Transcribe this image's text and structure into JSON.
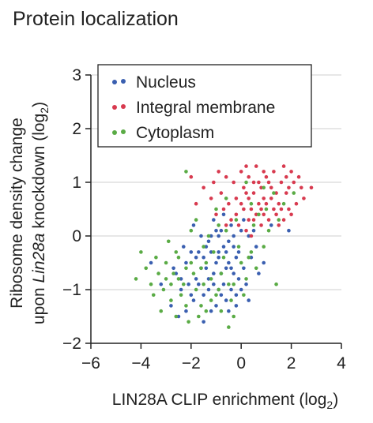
{
  "chart_data": {
    "type": "scatter",
    "title": "Protein localization",
    "xlabel": "LIN28A CLIP enrichment (log2)",
    "ylabel_line1": "Ribosome density change",
    "ylabel_line2_prefix": "upon ",
    "ylabel_line2_italic": "Lin28a",
    "ylabel_line2_suffix": " knockdown (log2)",
    "xlim": [
      -6,
      4
    ],
    "ylim": [
      -2,
      3
    ],
    "xticks": [
      "−6",
      "−4",
      "−2",
      "0",
      "2",
      "4"
    ],
    "yticks": [
      "−2",
      "−1",
      "0",
      "1",
      "2",
      "3"
    ],
    "grid": "horizontal",
    "legend_position": "top-left",
    "series": [
      {
        "name": "Nucleus",
        "color": "#3a5fb0"
      },
      {
        "name": "Integral membrane",
        "color": "#d83a4f"
      },
      {
        "name": "Cytoplasm",
        "color": "#5aab45"
      }
    ],
    "series_points": [
      [
        [
          -1.3,
          -0.1
        ],
        [
          -0.9,
          -0.3
        ],
        [
          -0.5,
          -0.5
        ],
        [
          -0.1,
          -0.8
        ],
        [
          -0.6,
          -1.2
        ],
        [
          -1.1,
          -0.7
        ],
        [
          -1.8,
          -0.4
        ],
        [
          -2.1,
          -0.9
        ],
        [
          -0.3,
          -0.2
        ],
        [
          0.1,
          -0.6
        ],
        [
          -0.8,
          0.1
        ],
        [
          -1.5,
          -1.1
        ],
        [
          -2.4,
          -1.0
        ],
        [
          -0.2,
          -1.3
        ],
        [
          0.3,
          0.0
        ],
        [
          -1.0,
          -0.5
        ],
        [
          -0.7,
          -0.9
        ],
        [
          -1.6,
          -0.6
        ],
        [
          -2.0,
          -0.3
        ],
        [
          -0.4,
          0.2
        ],
        [
          0.4,
          -0.4
        ],
        [
          -1.2,
          -1.4
        ],
        [
          -2.6,
          -0.7
        ],
        [
          -0.9,
          0.0
        ],
        [
          0.0,
          -1.0
        ],
        [
          -1.4,
          -0.2
        ],
        [
          -0.6,
          -0.6
        ],
        [
          -1.9,
          -1.2
        ],
        [
          -0.2,
          -0.4
        ],
        [
          -1.1,
          0.3
        ],
        [
          0.6,
          -0.2
        ],
        [
          -2.2,
          -0.5
        ],
        [
          -0.8,
          -1.1
        ],
        [
          -1.3,
          -0.8
        ],
        [
          -0.5,
          -0.1
        ],
        [
          0.2,
          -0.9
        ],
        [
          -1.7,
          -0.9
        ],
        [
          -2.8,
          -1.3
        ],
        [
          -0.3,
          -0.7
        ],
        [
          -1.0,
          -1.3
        ],
        [
          -1.5,
          -1.6
        ],
        [
          0.5,
          0.1
        ],
        [
          -0.7,
          0.4
        ],
        [
          -1.2,
          -0.3
        ],
        [
          -2.3,
          -0.2
        ],
        [
          -0.1,
          -0.3
        ],
        [
          -1.8,
          -0.8
        ],
        [
          -0.4,
          -1.0
        ],
        [
          0.9,
          -0.5
        ],
        [
          -3.2,
          -0.9
        ],
        [
          -2.5,
          -1.5
        ],
        [
          -0.9,
          -0.4
        ],
        [
          -1.6,
          0.0
        ],
        [
          0.1,
          0.3
        ],
        [
          -0.6,
          -0.3
        ],
        [
          -1.4,
          -0.6
        ],
        [
          -2.0,
          -1.1
        ],
        [
          -0.2,
          -1.1
        ],
        [
          -1.0,
          0.1
        ],
        [
          -3.6,
          -0.5
        ],
        [
          1.2,
          0.2
        ],
        [
          -0.5,
          -1.4
        ],
        [
          -1.9,
          0.2
        ],
        [
          -0.8,
          -0.7
        ],
        [
          0.3,
          -1.2
        ],
        [
          -1.3,
          -1.0
        ],
        [
          -2.7,
          -0.6
        ],
        [
          -0.3,
          0.0
        ],
        [
          -1.1,
          -0.9
        ],
        [
          -1.7,
          -0.3
        ],
        [
          1.9,
          0.1
        ],
        [
          -2.2,
          -1.4
        ],
        [
          -0.7,
          -0.2
        ],
        [
          0.0,
          0.1
        ],
        [
          -1.5,
          -0.4
        ],
        [
          -0.9,
          -1.0
        ],
        [
          -2.4,
          -0.8
        ],
        [
          -0.4,
          -0.6
        ],
        [
          -1.2,
          0.0
        ],
        [
          0.7,
          -0.7
        ]
      ],
      [
        [
          -0.2,
          0.4
        ],
        [
          0.3,
          0.7
        ],
        [
          0.8,
          0.5
        ],
        [
          1.2,
          0.9
        ],
        [
          0.5,
          0.3
        ],
        [
          1.5,
          0.6
        ],
        [
          0.1,
          0.9
        ],
        [
          -0.5,
          0.6
        ],
        [
          1.0,
          1.1
        ],
        [
          1.8,
          0.8
        ],
        [
          0.6,
          1.3
        ],
        [
          -0.8,
          0.8
        ],
        [
          0.2,
          0.1
        ],
        [
          1.4,
          0.4
        ],
        [
          2.0,
          1.2
        ],
        [
          0.9,
          0.7
        ],
        [
          -0.3,
          1.0
        ],
        [
          1.6,
          1.0
        ],
        [
          0.4,
          0.5
        ],
        [
          -1.0,
          0.4
        ],
        [
          1.1,
          0.3
        ],
        [
          2.4,
          0.9
        ],
        [
          0.7,
          1.0
        ],
        [
          -0.6,
          1.1
        ],
        [
          1.3,
          1.2
        ],
        [
          0.0,
          0.6
        ],
        [
          1.9,
          0.5
        ],
        [
          0.5,
          0.8
        ],
        [
          -1.2,
          0.7
        ],
        [
          1.7,
          1.3
        ],
        [
          0.8,
          0.2
        ],
        [
          -0.1,
          0.2
        ],
        [
          2.2,
          0.6
        ],
        [
          1.0,
          0.6
        ],
        [
          0.3,
          1.1
        ],
        [
          -0.9,
          1.2
        ],
        [
          1.5,
          0.2
        ],
        [
          0.6,
          0.4
        ],
        [
          2.8,
          0.9
        ],
        [
          -1.5,
          0.9
        ],
        [
          1.2,
          0.7
        ],
        [
          0.2,
          0.8
        ],
        [
          -0.4,
          0.3
        ],
        [
          1.8,
          1.1
        ],
        [
          0.9,
          1.2
        ],
        [
          2.1,
          1.0
        ],
        [
          -0.7,
          0.5
        ],
        [
          0.4,
          0.0
        ],
        [
          1.4,
          0.8
        ],
        [
          0.0,
          1.2
        ],
        [
          2.5,
          0.7
        ],
        [
          -1.8,
          0.6
        ],
        [
          1.1,
          1.0
        ],
        [
          0.7,
          0.6
        ],
        [
          -0.2,
          0.7
        ],
        [
          1.6,
          0.5
        ],
        [
          0.3,
          0.3
        ],
        [
          2.3,
          1.1
        ],
        [
          -1.1,
          1.0
        ],
        [
          0.8,
          0.9
        ],
        [
          1.3,
          0.5
        ],
        [
          0.5,
          1.0
        ],
        [
          -0.6,
          0.2
        ],
        [
          1.9,
          0.9
        ],
        [
          0.1,
          0.5
        ],
        [
          -2.0,
          1.1
        ],
        [
          1.7,
          0.3
        ],
        [
          0.9,
          0.4
        ],
        [
          2.0,
          0.4
        ],
        [
          0.2,
          1.3
        ]
      ],
      [
        [
          -2.6,
          -0.3
        ],
        [
          -3.0,
          -0.8
        ],
        [
          -2.2,
          -0.6
        ],
        [
          -1.8,
          -1.0
        ],
        [
          -3.4,
          -0.4
        ],
        [
          -2.8,
          -1.2
        ],
        [
          -1.5,
          -0.2
        ],
        [
          -2.0,
          0.1
        ],
        [
          -3.6,
          -0.9
        ],
        [
          -2.4,
          -1.1
        ],
        [
          -1.2,
          -0.8
        ],
        [
          -0.8,
          -1.4
        ],
        [
          -2.9,
          -0.1
        ],
        [
          -3.2,
          -1.4
        ],
        [
          -1.6,
          -1.3
        ],
        [
          -0.5,
          -0.9
        ],
        [
          -2.1,
          -1.6
        ],
        [
          -3.8,
          -0.6
        ],
        [
          -4.2,
          -0.8
        ],
        [
          -1.0,
          -1.1
        ],
        [
          -0.3,
          -1.5
        ],
        [
          0.2,
          -0.8
        ],
        [
          -2.5,
          -0.4
        ],
        [
          -1.4,
          -0.5
        ],
        [
          -1.9,
          -0.7
        ],
        [
          -0.7,
          -0.4
        ],
        [
          0.4,
          -0.3
        ],
        [
          -3.1,
          -1.0
        ],
        [
          -2.3,
          -0.9
        ],
        [
          -0.9,
          0.2
        ],
        [
          -1.3,
          0.0
        ],
        [
          -0.1,
          -0.2
        ],
        [
          0.6,
          -0.6
        ],
        [
          -1.7,
          -1.5
        ],
        [
          -2.7,
          -0.7
        ],
        [
          -3.5,
          -1.1
        ],
        [
          -0.4,
          -1.2
        ],
        [
          0.9,
          -0.2
        ],
        [
          1.4,
          -0.9
        ],
        [
          -1.1,
          -0.3
        ],
        [
          -2.0,
          -0.5
        ],
        [
          0.1,
          -1.1
        ],
        [
          -0.6,
          0.1
        ],
        [
          -1.5,
          -0.9
        ],
        [
          -2.2,
          -1.3
        ],
        [
          -0.2,
          0.3
        ],
        [
          0.5,
          0.2
        ],
        [
          1.1,
          0.1
        ],
        [
          -1.8,
          0.3
        ],
        [
          -3.0,
          -0.5
        ],
        [
          -0.8,
          -0.7
        ],
        [
          0.0,
          -0.5
        ],
        [
          -1.2,
          -1.2
        ],
        [
          -2.5,
          -0.8
        ],
        [
          -4.0,
          -0.3
        ],
        [
          -0.5,
          -1.7
        ],
        [
          0.3,
          -0.4
        ],
        [
          1.5,
          0.3
        ],
        [
          -1.0,
          0.5
        ],
        [
          -2.2,
          1.2
        ],
        [
          -3.3,
          -0.7
        ],
        [
          -1.6,
          -0.6
        ],
        [
          -0.3,
          -0.9
        ],
        [
          0.7,
          0.4
        ],
        [
          -2.8,
          -0.9
        ],
        [
          1.3,
          0.8
        ],
        [
          0.9,
          0.9
        ],
        [
          -0.6,
          0.7
        ],
        [
          0.2,
          1.0
        ],
        [
          -1.4,
          -1.4
        ],
        [
          1.7,
          0.6
        ],
        [
          2.1,
          0.8
        ],
        [
          0.4,
          0.6
        ],
        [
          -0.9,
          -1.0
        ],
        [
          -2.6,
          -1.5
        ],
        [
          1.0,
          0.5
        ]
      ]
    ]
  }
}
